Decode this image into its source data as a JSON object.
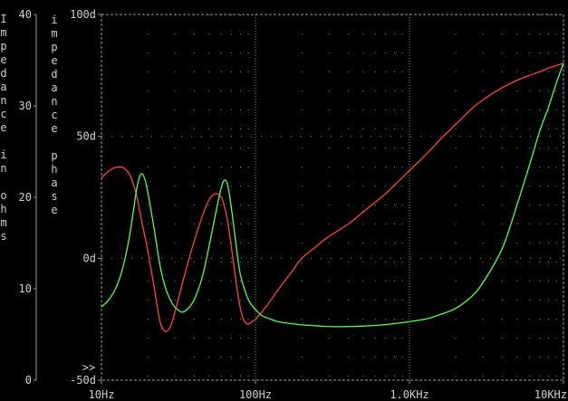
{
  "chart_data": {
    "type": "line",
    "x_scale": "log",
    "xlim": [
      10,
      10000
    ],
    "x_ticks": [
      {
        "value": 10,
        "label": "10Hz"
      },
      {
        "value": 100,
        "label": "100Hz"
      },
      {
        "value": 1000,
        "label": "1.0KHz"
      },
      {
        "value": 10000,
        "label": "10KHz"
      }
    ],
    "left_axis": {
      "label": "Impedance in ohms",
      "ylim": [
        0,
        40
      ],
      "ticks": [
        {
          "value": 0,
          "label": "0"
        },
        {
          "value": 10,
          "label": "10"
        },
        {
          "value": 20,
          "label": "20"
        },
        {
          "value": 30,
          "label": "30"
        },
        {
          "value": 40,
          "label": "40"
        }
      ]
    },
    "right_axis": {
      "label": "impedance phase",
      "ylim": [
        -50,
        100
      ],
      "ticks": [
        {
          "value": -50,
          "label": "-50d"
        },
        {
          "value": 0,
          "label": "0d"
        },
        {
          "value": 50,
          "label": "50d"
        },
        {
          "value": 100,
          "label": "100d"
        }
      ]
    },
    "grid": true,
    "scroll_marker": ">>",
    "series": [
      {
        "color": "#ff4040",
        "axis": "right",
        "x": [
          10,
          11,
          12,
          13,
          14,
          15,
          16,
          17,
          18,
          20,
          22,
          24,
          26,
          28,
          30,
          33,
          36,
          40,
          45,
          50,
          55,
          60,
          63,
          66,
          70,
          75,
          80,
          85,
          90,
          95,
          100,
          110,
          120,
          140,
          170,
          200,
          250,
          300,
          400,
          500,
          600,
          700,
          800,
          1000,
          1300,
          1600,
          2000,
          2500,
          3000,
          4000,
          5000,
          6000,
          7000,
          8000,
          10000
        ],
        "y": [
          33,
          35.5,
          37,
          37.5,
          37,
          35,
          31,
          25,
          17,
          3,
          -12,
          -26,
          -30,
          -28,
          -22,
          -12,
          -3,
          7,
          17,
          24,
          26.5,
          25,
          21,
          15,
          4,
          -10,
          -21,
          -26,
          -27,
          -26,
          -25,
          -22,
          -19,
          -13,
          -6,
          0,
          5,
          9,
          14,
          19,
          23,
          26.5,
          30,
          36,
          43,
          49,
          55,
          61,
          65,
          70,
          73,
          75,
          76.5,
          78,
          80
        ]
      },
      {
        "color": "#50ff50",
        "axis": "right",
        "x": [
          10,
          11,
          12,
          13,
          14,
          15,
          16,
          17,
          18,
          19,
          20,
          22,
          24,
          26,
          28,
          30,
          33,
          36,
          40,
          45,
          50,
          55,
          60,
          63,
          66,
          70,
          75,
          80,
          90,
          100,
          110,
          120,
          140,
          170,
          200,
          250,
          300,
          400,
          500,
          700,
          1000,
          1300,
          1600,
          2000,
          2500,
          3000,
          4000,
          5000,
          6000,
          7000,
          8000,
          9000,
          10000
        ],
        "y": [
          -20,
          -17.5,
          -14,
          -9,
          -2,
          7,
          18,
          29,
          34.5,
          33,
          27,
          12,
          -3,
          -12,
          -17,
          -20,
          -22,
          -21,
          -17,
          -8,
          5,
          18,
          29,
          32,
          30,
          20,
          5,
          -7,
          -17,
          -21,
          -23.5,
          -24.5,
          -26,
          -26.8,
          -27.3,
          -27.7,
          -28,
          -28,
          -27.8,
          -27.2,
          -26,
          -24.8,
          -23,
          -20.5,
          -16,
          -10,
          4,
          22,
          38,
          52,
          62,
          72,
          80
        ]
      }
    ]
  }
}
